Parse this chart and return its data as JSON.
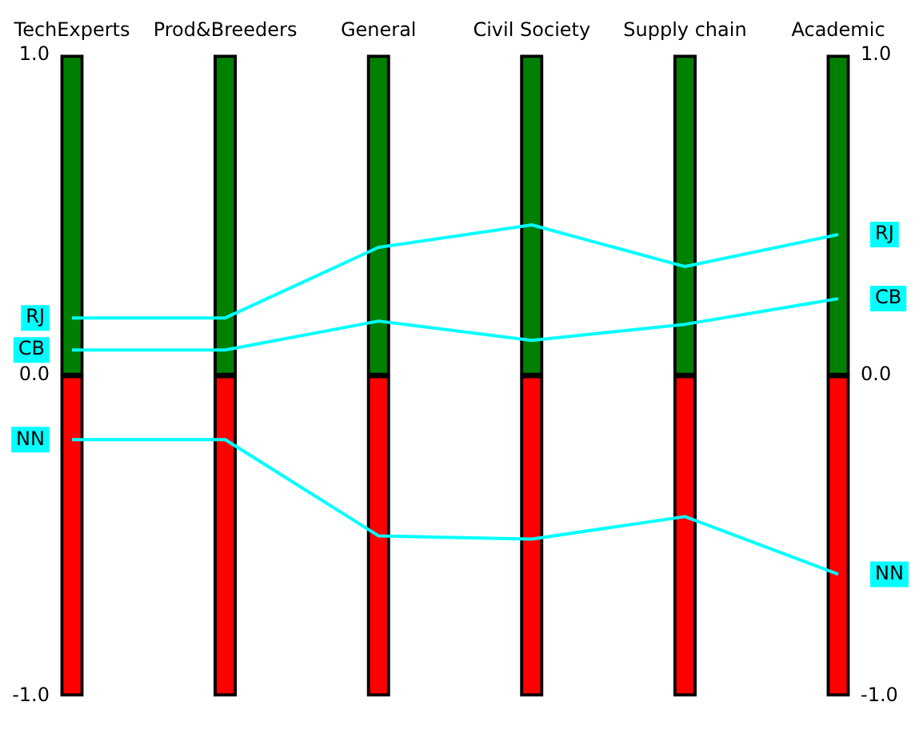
{
  "chart_data": {
    "type": "line",
    "categories": [
      "TechExperts",
      "Prod&Breeders",
      "General",
      "Civil Society",
      "Supply chain",
      "Academic"
    ],
    "series": [
      {
        "type": "bar",
        "color": "#008000",
        "values": [
          1,
          1,
          1,
          1,
          1,
          1
        ]
      },
      {
        "type": "bar",
        "color": "#ff0000",
        "values": [
          -1,
          -1,
          -1,
          -1,
          -1,
          -1
        ]
      },
      {
        "name": "RJ",
        "color": "#00ffff",
        "values": [
          0.18,
          0.18,
          0.4,
          0.47,
          0.34,
          0.44
        ]
      },
      {
        "name": "CB",
        "color": "#00ffff",
        "values": [
          0.08,
          0.08,
          0.17,
          0.11,
          0.16,
          0.24
        ]
      },
      {
        "name": "NN",
        "color": "#00ffff",
        "values": [
          -0.2,
          -0.2,
          -0.5,
          -0.51,
          -0.44,
          -0.62
        ]
      }
    ],
    "ylim": [
      -1,
      1
    ],
    "yticks": [
      {
        "value": -1,
        "label": "-1.0"
      },
      {
        "value": 0,
        "label": "0.0"
      },
      {
        "value": 1,
        "label": "1.0"
      }
    ],
    "y2lim": [
      -1,
      1
    ],
    "y2ticks": [
      {
        "value": -1,
        "label": "-1.0"
      },
      {
        "value": 0,
        "label": "0.0"
      },
      {
        "value": 1,
        "label": "1.0"
      }
    ],
    "stacked": true,
    "grid": false,
    "legend": "left",
    "marker": "none",
    "line_style": "solid"
  }
}
